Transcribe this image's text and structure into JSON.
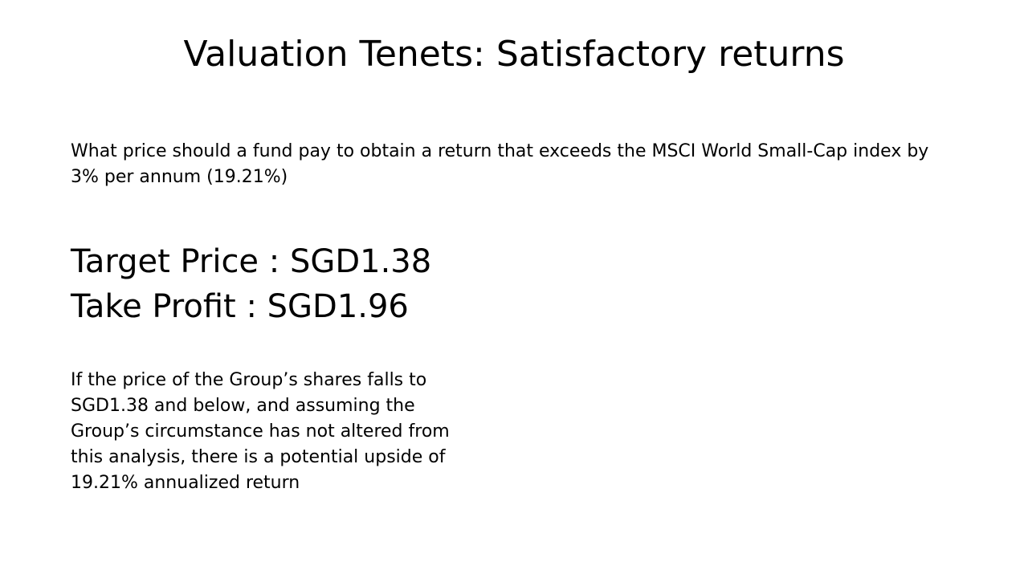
{
  "slide": {
    "title": "Valuation Tenets: Satisfactory returns",
    "intro": "What price should a fund pay to obtain a return that exceeds the MSCI World Small-Cap index by 3% per annum (19.21%)",
    "target_price": "Target Price : SGD1.38",
    "take_profit": "Take Profit : SGD1.96",
    "explanation": "If the price of the Group’s shares falls to SGD1.38 and below, and assuming the Group’s circumstance has not altered from this analysis, there is a potential upside of 19.21% annualized return"
  }
}
